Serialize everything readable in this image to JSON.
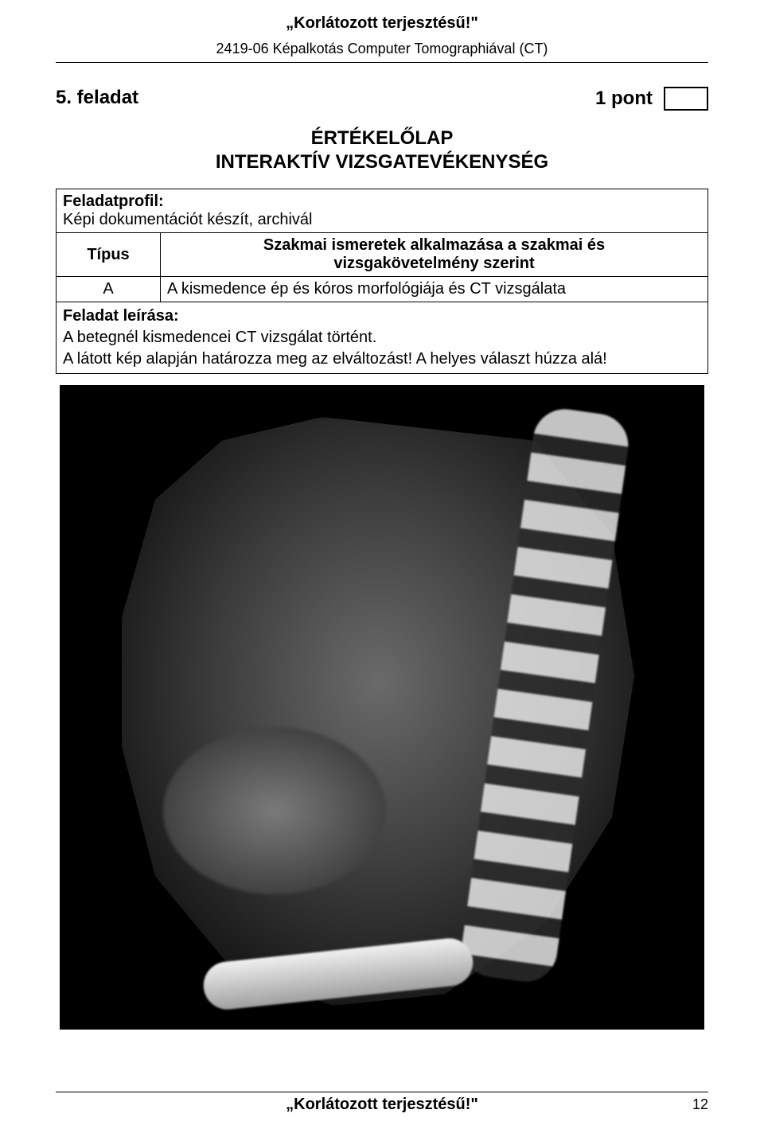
{
  "header": {
    "title": "„Korlátozott terjesztésű!\"",
    "subtitle": "2419-06 Képalkotás Computer Tomographiával (CT)"
  },
  "task": {
    "label": "5. feladat",
    "points": "1 pont"
  },
  "eval": {
    "line1": "ÉRTÉKELŐLAP",
    "line2": "INTERAKTÍV VIZSGATEVÉKENYSÉG"
  },
  "table": {
    "profile_label": "Feladatprofil:",
    "profile_text": "Képi dokumentációt készít, archivál",
    "type_label": "Típus",
    "req_line1": "Szakmai ismeretek alkalmazása a szakmai és",
    "req_line2": "vizsgakövetelmény szerint",
    "row_a_type": "A",
    "row_a_text": "A kismedence ép és kóros morfológiája és CT vizsgálata",
    "desc_lead": "Feladat leírása:",
    "desc_line1": "A betegnél kismedencei CT vizsgálat történt.",
    "desc_line2": "A látott kép alapján határozza meg az elváltozást! A helyes választ húzza alá!"
  },
  "ct": {
    "alt": "Sagittal pelvic CT scan image",
    "bg": "#000000"
  },
  "footer": {
    "title": "„Korlátozott terjesztésű!\"",
    "page": "12"
  }
}
